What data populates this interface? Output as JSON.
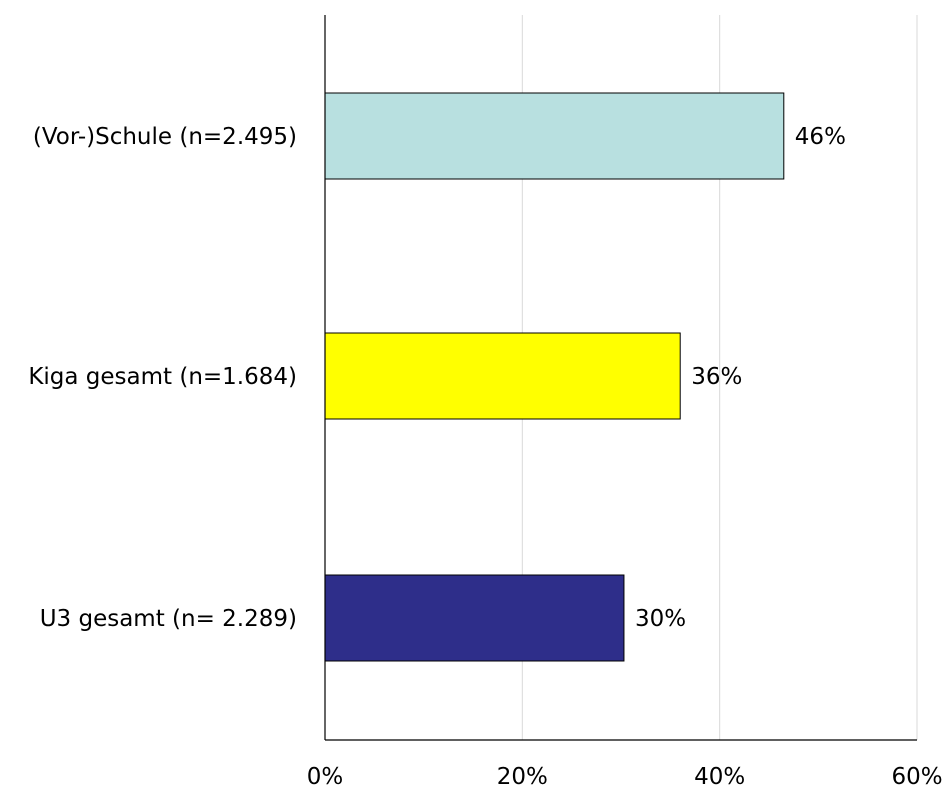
{
  "chart_data": {
    "type": "bar",
    "orientation": "horizontal",
    "categories": [
      "(Vor-)Schule (n=2.495)",
      "Kiga gesamt (n=1.684)",
      "U3 gesamt (n= 2.289)"
    ],
    "values": [
      46.5,
      36,
      30.3
    ],
    "data_labels": [
      "46%",
      "36%",
      "30%"
    ],
    "colors": [
      "#b8e0e0",
      "#ffff00",
      "#2e2e8a"
    ],
    "xlim": [
      0,
      60
    ],
    "x_ticks": [
      0,
      20,
      40,
      60
    ],
    "x_tick_labels": [
      "0%",
      "20%",
      "40%",
      "60%"
    ],
    "grid": true,
    "legend": "none",
    "title": "",
    "xlabel": "",
    "ylabel": ""
  }
}
